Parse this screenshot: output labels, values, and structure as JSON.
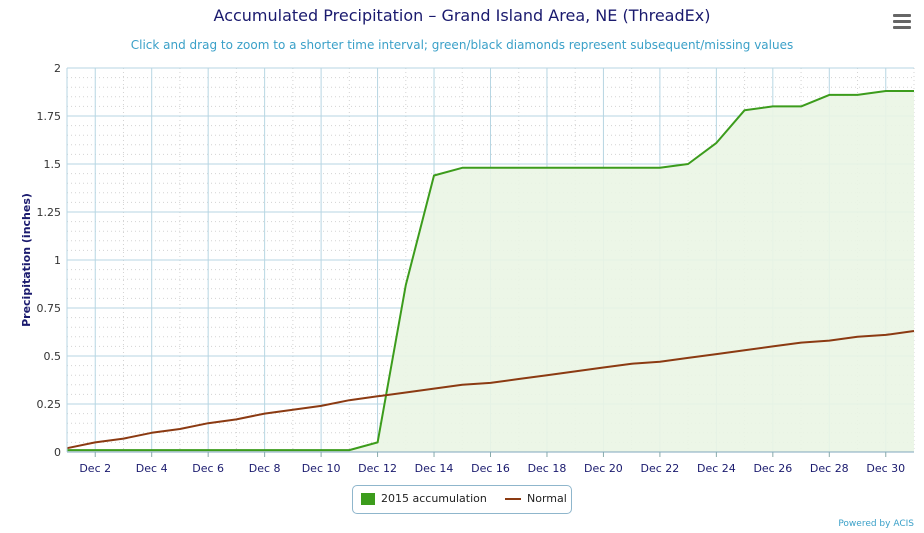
{
  "title": "Accumulated Precipitation – Grand Island Area, NE (ThreadEx)",
  "subtitle": "Click and drag to zoom to a shorter time interval; green/black diamonds represent subsequent/missing values",
  "credit": "Powered by ACIS",
  "colors": {
    "accumulation_line": "#3c9c1c",
    "accumulation_fill": "#eaf5e4",
    "normal_line": "#8b3a12",
    "grid": "#b7d6e3"
  },
  "chart_data": {
    "type": "line",
    "ylabel": "Precipitation (inches)",
    "ylim": [
      0,
      2
    ],
    "yticks": [
      0,
      0.25,
      0.5,
      0.75,
      1,
      1.25,
      1.5,
      1.75,
      2
    ],
    "ytick_labels": [
      "0",
      "0.25",
      "0.5",
      "0.75",
      "1",
      "1.25",
      "1.5",
      "1.75",
      "2"
    ],
    "xlim": [
      1,
      31
    ],
    "xticks": [
      2,
      4,
      6,
      8,
      10,
      12,
      14,
      16,
      18,
      20,
      22,
      24,
      26,
      28,
      30
    ],
    "xtick_labels": [
      "Dec 2",
      "Dec 4",
      "Dec 6",
      "Dec 8",
      "Dec 10",
      "Dec 12",
      "Dec 14",
      "Dec 16",
      "Dec 18",
      "Dec 20",
      "Dec 22",
      "Dec 24",
      "Dec 26",
      "Dec 28",
      "Dec 30"
    ],
    "grid": true,
    "legend_position": "bottom-center",
    "series": [
      {
        "name": "2015 accumulation",
        "x": [
          1,
          2,
          3,
          4,
          5,
          6,
          7,
          8,
          9,
          10,
          11,
          12,
          13,
          14,
          15,
          16,
          17,
          18,
          19,
          20,
          21,
          22,
          23,
          24,
          25,
          26,
          27,
          28,
          29,
          30,
          31
        ],
        "values": [
          0.01,
          0.01,
          0.01,
          0.01,
          0.01,
          0.01,
          0.01,
          0.01,
          0.01,
          0.01,
          0.01,
          0.05,
          0.87,
          1.44,
          1.48,
          1.48,
          1.48,
          1.48,
          1.48,
          1.48,
          1.48,
          1.48,
          1.5,
          1.61,
          1.78,
          1.8,
          1.8,
          1.86,
          1.86,
          1.88,
          1.88
        ]
      },
      {
        "name": "Normal",
        "x": [
          1,
          2,
          3,
          4,
          5,
          6,
          7,
          8,
          9,
          10,
          11,
          12,
          13,
          14,
          15,
          16,
          17,
          18,
          19,
          20,
          21,
          22,
          23,
          24,
          25,
          26,
          27,
          28,
          29,
          30,
          31
        ],
        "values": [
          0.02,
          0.05,
          0.07,
          0.1,
          0.12,
          0.15,
          0.17,
          0.2,
          0.22,
          0.24,
          0.27,
          0.29,
          0.31,
          0.33,
          0.35,
          0.36,
          0.38,
          0.4,
          0.42,
          0.44,
          0.46,
          0.47,
          0.49,
          0.51,
          0.53,
          0.55,
          0.57,
          0.58,
          0.6,
          0.61,
          0.63
        ]
      }
    ]
  }
}
